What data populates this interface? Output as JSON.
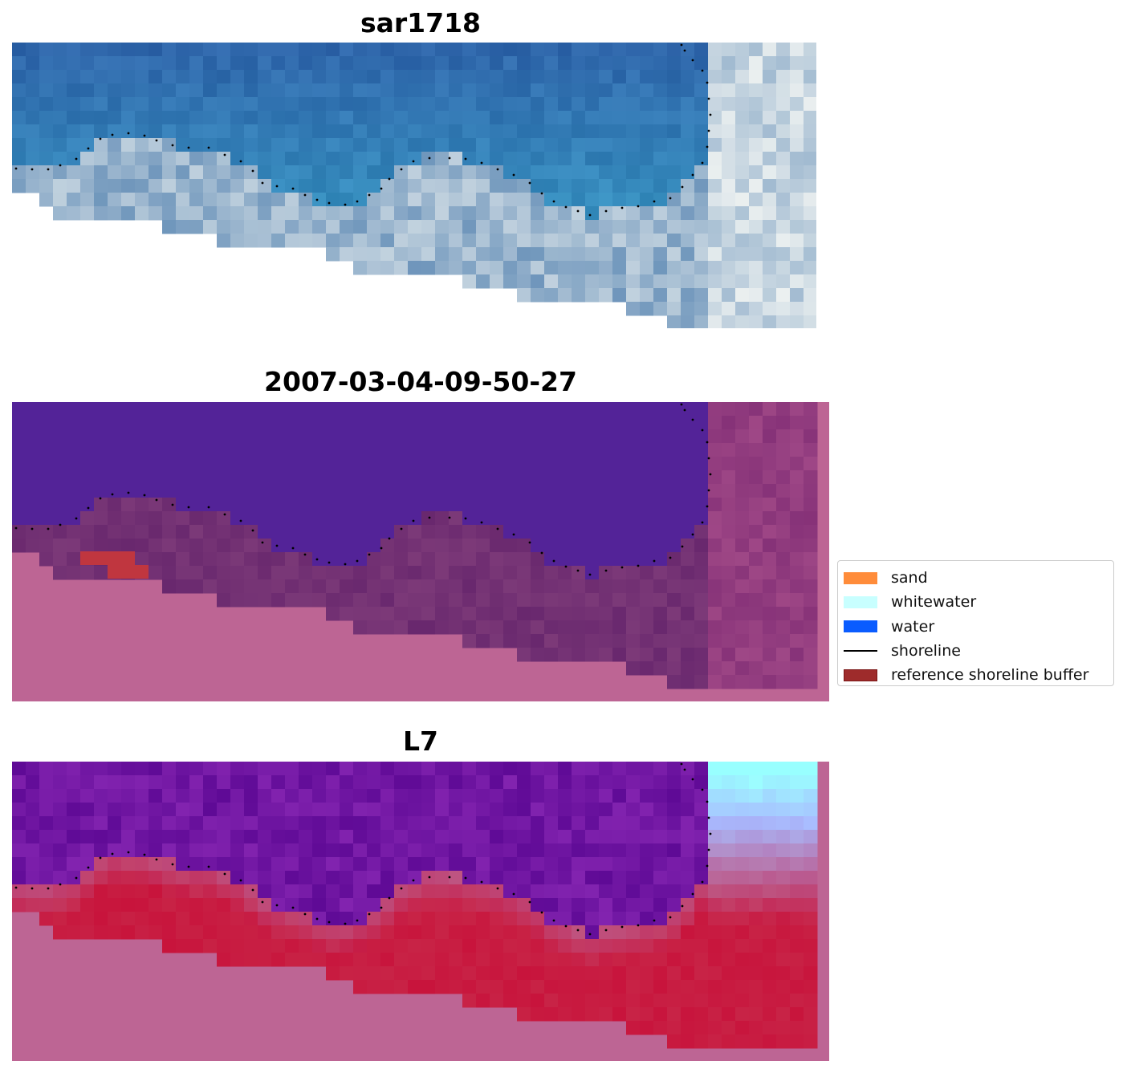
{
  "panels": [
    {
      "title": "sar1718",
      "style": "rgb"
    },
    {
      "title": "2007-03-04-09-50-27",
      "style": "classified"
    },
    {
      "title": "L7",
      "style": "index"
    }
  ],
  "legend": {
    "placement": "right of middle panel",
    "items": [
      {
        "label": "sand",
        "color": "#ff8c3a",
        "kind": "patch"
      },
      {
        "label": "whitewater",
        "color": "#c8ffff",
        "kind": "patch"
      },
      {
        "label": "water",
        "color": "#0a5cff",
        "kind": "patch"
      },
      {
        "label": "shoreline",
        "color": "#000000",
        "kind": "line"
      },
      {
        "label": "reference shoreline buffer",
        "color": "#9e2b2b",
        "kind": "patch"
      }
    ]
  },
  "colors": {
    "water_rgb": "#2a62a8",
    "water_class": "#532398",
    "land_mask": "#bd6594",
    "index_low": "#6a12a0",
    "index_high": "#c60f45"
  }
}
